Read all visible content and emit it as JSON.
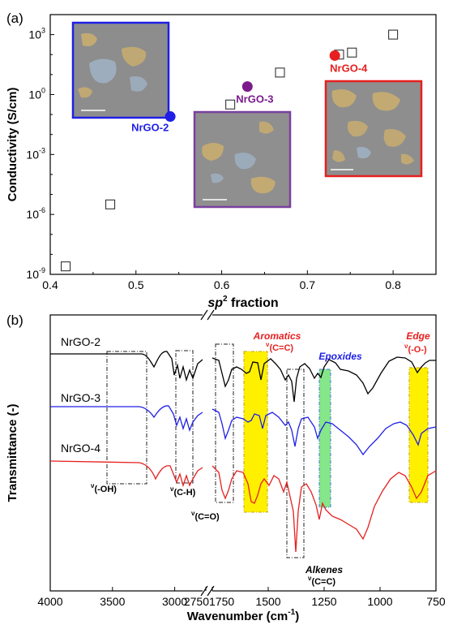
{
  "chart_data": [
    {
      "panel": "(a)",
      "type": "scatter",
      "xlabel_main": "sp",
      "xlabel_sup": "2",
      "xlabel_rest": " fraction",
      "ylabel": "Conductivity (S/cm)",
      "xlim": [
        0.4,
        0.85
      ],
      "yscale": "log",
      "ylim_log10": [
        -9,
        4
      ],
      "x_ticks": [
        "0.4",
        "0.5",
        "0.6",
        "0.7",
        "0.8"
      ],
      "y_ticks": [
        {
          "base": "10",
          "exp": "-9",
          "v": -9
        },
        {
          "base": "10",
          "exp": "-6",
          "v": -6
        },
        {
          "base": "10",
          "exp": "-3",
          "v": -3
        },
        {
          "base": "10",
          "exp": "0",
          "v": 0
        },
        {
          "base": "10",
          "exp": "3",
          "v": 3
        }
      ],
      "series": [
        {
          "marker": "open-square",
          "color": "#333333",
          "points": [
            {
              "x": 0.418,
              "log10y": -8.6
            },
            {
              "x": 0.47,
              "log10y": -5.5
            },
            {
              "x": 0.61,
              "log10y": -0.5
            },
            {
              "x": 0.668,
              "log10y": 1.1
            },
            {
              "x": 0.737,
              "log10y": 2.0
            },
            {
              "x": 0.752,
              "log10y": 2.1
            },
            {
              "x": 0.8,
              "log10y": 3.0
            }
          ]
        },
        {
          "marker": "filled-circle",
          "points": [
            {
              "label": "NrGO-2",
              "x": 0.54,
              "log10y": -1.1,
              "color": "#1f1fe6"
            },
            {
              "label": "NrGO-3",
              "x": 0.63,
              "log10y": 0.4,
              "color": "#7a1a8c"
            },
            {
              "label": "NrGO-4",
              "x": 0.732,
              "log10y": 1.95,
              "color": "#e6201f"
            }
          ]
        }
      ]
    },
    {
      "panel": "(b)",
      "type": "line",
      "xlabel_main": "Wavenumber (cm",
      "xlabel_sup": "-1",
      "xlabel_end": ")",
      "ylabel": "Transmittance (-)",
      "x_axis_broken": true,
      "x_ticks": [
        "4000",
        "3500",
        "3000",
        "2750",
        "1750",
        "1500",
        "1250",
        "1000",
        "750"
      ],
      "series": [
        {
          "name": "NrGO-2",
          "color": "#000000"
        },
        {
          "name": "NrGO-3",
          "color": "#1f1fe6"
        },
        {
          "name": "NrGO-4",
          "color": "#e6201f"
        }
      ],
      "annotations": [
        {
          "nu": "ν",
          "text": "(-OH)"
        },
        {
          "nu": "ν",
          "text": "(C-H)"
        },
        {
          "nu": "ν",
          "text": "(C=O)"
        },
        {
          "name": "Aromatics",
          "nu": "ν",
          "text": "(C=C)"
        },
        {
          "name": "Epoxides"
        },
        {
          "name": "Alkenes",
          "nu": "ν",
          "text": "(C=C)"
        },
        {
          "name": "Edge",
          "nu": "ν",
          "text": "(-O-)"
        }
      ]
    }
  ]
}
